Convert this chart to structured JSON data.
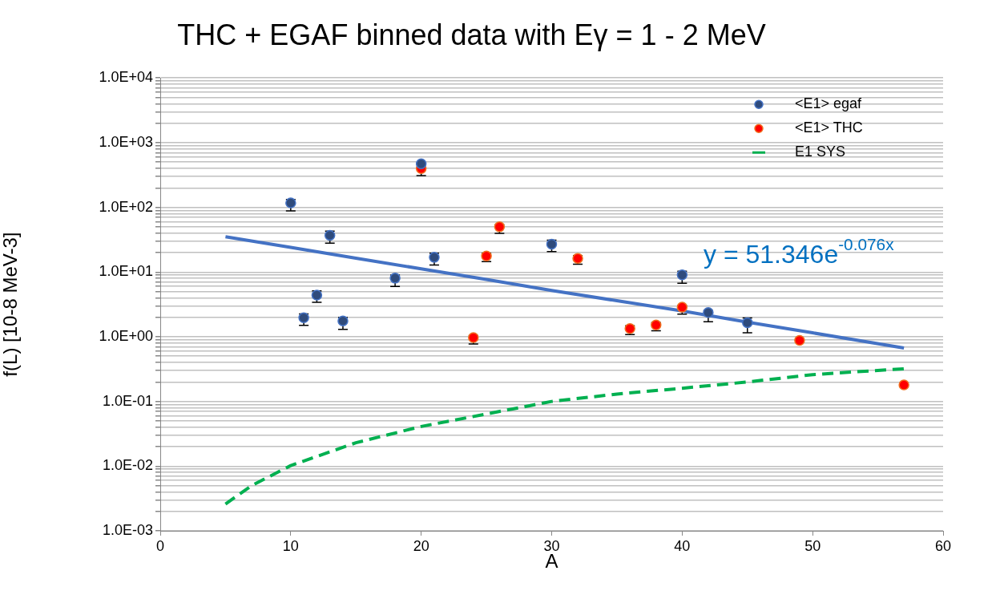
{
  "chart_data": {
    "type": "scatter",
    "title": "THC + EGAF binned data with Eγ = 1 - 2 MeV",
    "xlabel": "A",
    "ylabel": "f(L) [10-8 MeV-3]",
    "log": "y",
    "grid": "y",
    "legend": "top right",
    "xlim": [
      0,
      60
    ],
    "xticks": [
      0,
      10,
      20,
      30,
      40,
      50,
      60
    ],
    "ylim": [
      0.001,
      10000
    ],
    "yticks": [
      {
        "value": 0.001,
        "label": "1.0E-03"
      },
      {
        "value": 0.002,
        "label": null
      },
      {
        "value": 0.003,
        "label": null
      },
      {
        "value": 0.004,
        "label": null
      },
      {
        "value": 0.005,
        "label": null
      },
      {
        "value": 0.006,
        "label": null
      },
      {
        "value": 0.007,
        "label": null
      },
      {
        "value": 0.008,
        "label": null
      },
      {
        "value": 0.009,
        "label": null
      },
      {
        "value": 0.01,
        "label": "1.0E-02"
      },
      {
        "value": 0.02,
        "label": null
      },
      {
        "value": 0.03,
        "label": null
      },
      {
        "value": 0.04,
        "label": null
      },
      {
        "value": 0.05,
        "label": null
      },
      {
        "value": 0.06,
        "label": null
      },
      {
        "value": 0.07,
        "label": null
      },
      {
        "value": 0.08,
        "label": null
      },
      {
        "value": 0.09,
        "label": null
      },
      {
        "value": 0.1,
        "label": "1.0E-01"
      },
      {
        "value": 0.2,
        "label": null
      },
      {
        "value": 0.3,
        "label": null
      },
      {
        "value": 0.4,
        "label": null
      },
      {
        "value": 0.5,
        "label": null
      },
      {
        "value": 0.6,
        "label": null
      },
      {
        "value": 0.7,
        "label": null
      },
      {
        "value": 0.8,
        "label": null
      },
      {
        "value": 0.9,
        "label": null
      },
      {
        "value": 1,
        "label": "1.0E+00"
      },
      {
        "value": 2,
        "label": null
      },
      {
        "value": 3,
        "label": null
      },
      {
        "value": 4,
        "label": null
      },
      {
        "value": 5,
        "label": null
      },
      {
        "value": 6,
        "label": null
      },
      {
        "value": 7,
        "label": null
      },
      {
        "value": 8,
        "label": null
      },
      {
        "value": 9,
        "label": null
      },
      {
        "value": 10,
        "label": "1.0E+01"
      },
      {
        "value": 20,
        "label": null
      },
      {
        "value": 30,
        "label": null
      },
      {
        "value": 40,
        "label": null
      },
      {
        "value": 50,
        "label": null
      },
      {
        "value": 60,
        "label": null
      },
      {
        "value": 70,
        "label": null
      },
      {
        "value": 80,
        "label": null
      },
      {
        "value": 90,
        "label": null
      },
      {
        "value": 100,
        "label": "1.0E+02"
      },
      {
        "value": 200,
        "label": null
      },
      {
        "value": 300,
        "label": null
      },
      {
        "value": 400,
        "label": null
      },
      {
        "value": 500,
        "label": null
      },
      {
        "value": 600,
        "label": null
      },
      {
        "value": 700,
        "label": null
      },
      {
        "value": 800,
        "label": null
      },
      {
        "value": 900,
        "label": null
      },
      {
        "value": 1000,
        "label": "1.0E+03"
      },
      {
        "value": 2000,
        "label": null
      },
      {
        "value": 3000,
        "label": null
      },
      {
        "value": 4000,
        "label": null
      },
      {
        "value": 5000,
        "label": null
      },
      {
        "value": 6000,
        "label": null
      },
      {
        "value": 7000,
        "label": null
      },
      {
        "value": 8000,
        "label": null
      },
      {
        "value": 9000,
        "label": null
      },
      {
        "value": 10000,
        "label": "1.0E+04"
      }
    ],
    "series": [
      {
        "name": "<E1> egaf",
        "marker": "circle",
        "color": "#2f4b7c",
        "x": [
          10,
          11,
          12,
          13,
          14,
          18,
          20,
          21,
          30,
          40,
          42,
          45
        ],
        "values": [
          117,
          1.97,
          4.4,
          37,
          1.76,
          8.05,
          472,
          16.9,
          27,
          9.06,
          2.37,
          1.65
        ],
        "errors": [
          [
            88,
            132
          ],
          [
            1.5,
            2.25
          ],
          [
            3.4,
            5.1
          ],
          [
            28,
            43
          ],
          [
            1.3,
            2.0
          ],
          [
            6.0,
            9.0
          ],
          null,
          [
            12.8,
            19.5
          ],
          [
            20.7,
            31
          ],
          [
            6.7,
            10.3
          ],
          [
            1.71,
            2.55
          ],
          [
            1.15,
            1.95
          ]
        ]
      },
      {
        "name": "<E1> THC",
        "marker": "circle",
        "color": "#ff0000",
        "x": [
          20,
          24,
          25,
          26,
          32,
          36,
          38,
          40,
          49,
          57
        ],
        "values": [
          398,
          0.97,
          17.7,
          50,
          16.3,
          1.34,
          1.52,
          2.86,
          0.88,
          0.18
        ],
        "errors": [
          [
            310,
            460
          ],
          [
            0.77,
            1.04
          ],
          [
            14.5,
            19.5
          ],
          [
            39.5,
            54
          ],
          [
            13.2,
            18
          ],
          [
            1.08,
            1.48
          ],
          [
            1.24,
            1.66
          ],
          [
            2.24,
            3.03
          ],
          null,
          null
        ]
      },
      {
        "name": "E1 SYS",
        "type": "line",
        "marker": "none",
        "line_style": "dashed",
        "color": "#00b050",
        "x": [
          5,
          7,
          10,
          15,
          20,
          25,
          30,
          35,
          40,
          45,
          50,
          57
        ],
        "values": [
          0.0026,
          0.005,
          0.0102,
          0.023,
          0.041,
          0.064,
          0.1,
          0.13,
          0.16,
          0.2,
          0.26,
          0.32
        ]
      },
      {
        "type": "line",
        "marker": "none",
        "line_style": "solid",
        "color": "#4472c4",
        "x": [
          5,
          10,
          15,
          20,
          25,
          30,
          35,
          40,
          45,
          50,
          57
        ],
        "values": [
          35.1,
          24,
          16.4,
          11.2,
          7.7,
          5.2,
          3.6,
          2.5,
          1.68,
          1.15,
          0.67
        ]
      }
    ],
    "annotations": [
      "y = 51.346e$^{-0.076x}$"
    ]
  }
}
